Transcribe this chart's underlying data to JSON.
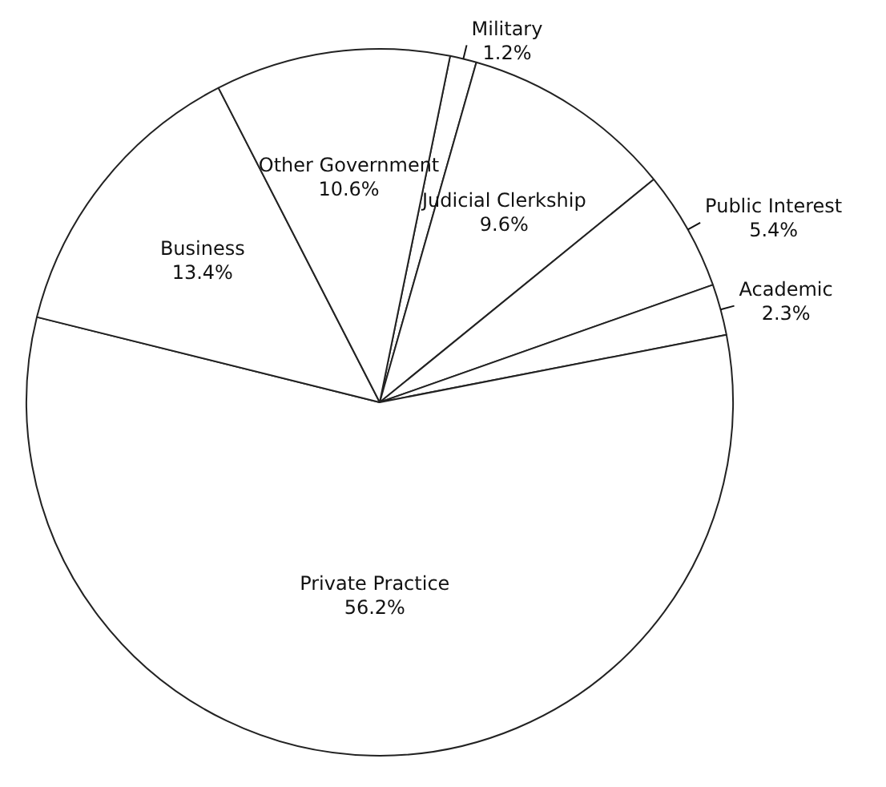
{
  "chart_data": {
    "type": "pie",
    "categories": [
      "Military",
      "Judicial Clerkship",
      "Public Interest",
      "Academic",
      "Private Practice",
      "Business",
      "Other Government"
    ],
    "values": [
      1.2,
      9.6,
      5.4,
      2.3,
      56.2,
      13.4,
      10.6
    ],
    "value_labels": [
      "1.2%",
      "9.6%",
      "5.4%",
      "2.3%",
      "56.2%",
      "13.4%",
      "10.6%"
    ],
    "colors": [
      "#ffffff",
      "#ffffff",
      "#ffffff",
      "#ffffff",
      "#ffffff",
      "#ffffff",
      "#ffffff"
    ],
    "legend": false
  }
}
